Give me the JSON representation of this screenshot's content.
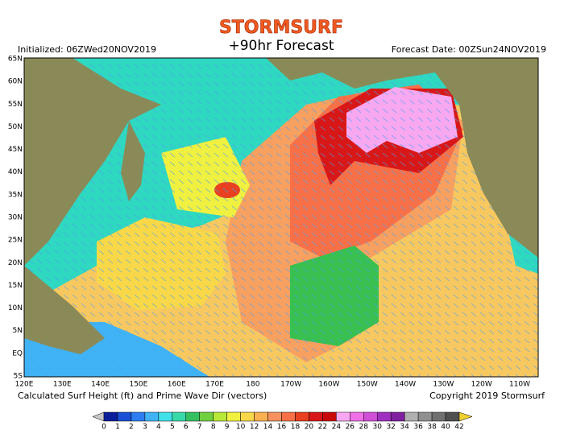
{
  "header": {
    "logo": "STORMSURF",
    "title": "+90hr Forecast",
    "initialized": "Initialized: 06ZWed20NOV2019",
    "forecast_date": "Forecast Date: 00ZSun24NOV2019"
  },
  "map": {
    "lat_labels": [
      "65N",
      "60N",
      "55N",
      "50N",
      "45N",
      "40N",
      "35N",
      "30N",
      "25N",
      "20N",
      "15N",
      "10N",
      "5N",
      "EQ",
      "5S"
    ],
    "lon_labels": [
      "120E",
      "130E",
      "140E",
      "150E",
      "160E",
      "170E",
      "180",
      "170W",
      "160W",
      "150W",
      "140W",
      "130W",
      "120W",
      "110W"
    ]
  },
  "footer": {
    "caption": "Calculated Surf Height (ft) and Prime Wave Dir (vectors)",
    "copyright": "Copyright 2019 Stormsurf"
  },
  "colorbar": {
    "values": [
      0,
      1,
      2,
      3,
      4,
      5,
      6,
      7,
      8,
      9,
      10,
      12,
      14,
      16,
      18,
      20,
      22,
      24,
      26,
      28,
      30,
      32,
      34,
      36,
      38,
      40,
      42
    ],
    "colors": [
      "#c8c8c8",
      "#0a1e9a",
      "#1a4fd6",
      "#2d7cf0",
      "#3fb3f5",
      "#3fe0e8",
      "#38d9a8",
      "#34c060",
      "#70d040",
      "#b8e838",
      "#f0f040",
      "#f8d848",
      "#f8b050",
      "#f89060",
      "#f87048",
      "#e84020",
      "#d81818",
      "#c80a0a",
      "#f8a8f0",
      "#f070e8",
      "#d050d8",
      "#a030c0",
      "#8020a0",
      "#b0b0b0",
      "#909090",
      "#707070",
      "#505050",
      "#f0d030"
    ]
  }
}
